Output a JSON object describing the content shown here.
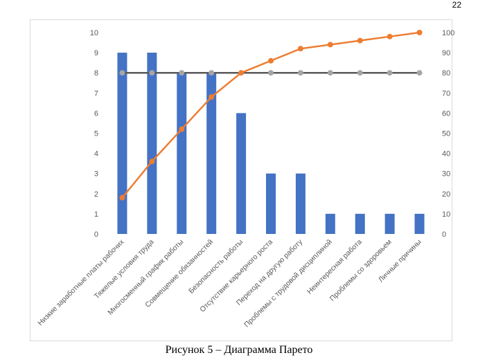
{
  "page_number": "22",
  "caption": "Рисунок 5 – Диаграмма Парето",
  "chart_data": {
    "type": "bar",
    "categories": [
      "Низкие заработные платы рабочих",
      "Тяжелые условия труда",
      "Многосменный график работы",
      "Совмещение обязанностей",
      "Безопасность работы",
      "Отсутствие карьерного роста",
      "Переход на другую работу",
      "Проблемы с трудовой дисциплиной",
      "Неинтересная работа",
      "Проблемы со здоровьем",
      "Личные причины"
    ],
    "series": [
      {
        "type": "bar",
        "axis": "left",
        "color": "#4472c4",
        "values": [
          9,
          9,
          8,
          8,
          6,
          3,
          3,
          1,
          1,
          1,
          1
        ]
      },
      {
        "type": "line",
        "axis": "right",
        "color": "#ed7d31",
        "values": [
          18,
          36,
          52,
          68,
          80,
          86,
          92,
          94,
          96,
          98,
          100
        ]
      },
      {
        "type": "line",
        "axis": "right",
        "color": "#595959",
        "marker_color": "#a5a5a5",
        "values": [
          80,
          80,
          80,
          80,
          80,
          80,
          80,
          80,
          80,
          80,
          80
        ]
      }
    ],
    "ylim": [
      0,
      10
    ],
    "y2lim": [
      0,
      100
    ],
    "yticks": [
      "0",
      "1",
      "2",
      "3",
      "4",
      "5",
      "6",
      "7",
      "8",
      "9",
      "10"
    ],
    "y2ticks": [
      "0",
      "10",
      "20",
      "30",
      "40",
      "50",
      "60",
      "70",
      "80",
      "90",
      "100"
    ],
    "grid": false,
    "legend": "none"
  }
}
